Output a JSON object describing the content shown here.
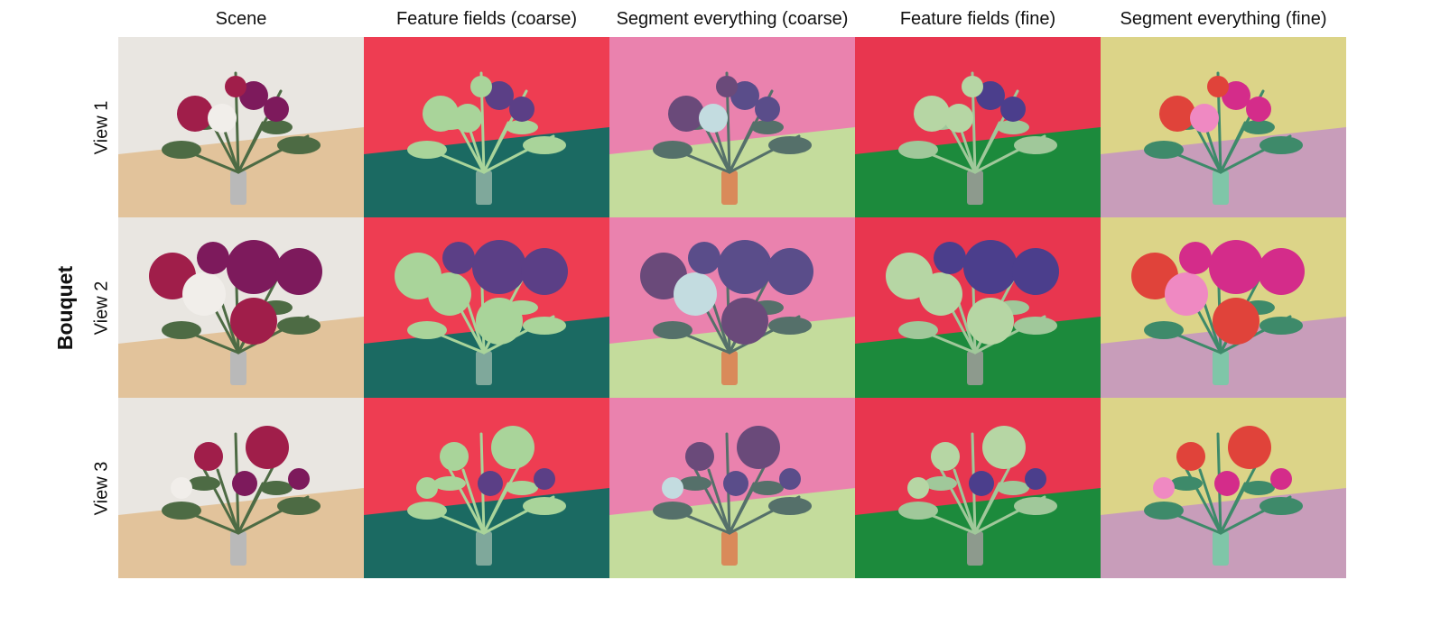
{
  "figure": {
    "group_label": "Bouquet",
    "columns": [
      "Scene",
      "Feature fields (coarse)",
      "Segment everything (coarse)",
      "Feature fields (fine)",
      "Segment everything (fine)"
    ],
    "rows": [
      "View 1",
      "View 2",
      "View 3"
    ]
  },
  "palettes": {
    "scene": {
      "wall": "#e9e6e1",
      "table": "#e2c39b",
      "vase": "#b9b9b9",
      "bloom_a": "#a01e4a",
      "bloom_b": "#7d1a5c",
      "bloom_c": "#f1eeea",
      "leaf": "#4d6b44"
    },
    "ff_coarse": {
      "wall": "#ee3d52",
      "table": "#1b6a62",
      "vase": "#7fa89b",
      "bloom_a": "#a9d49a",
      "bloom_b": "#5b3f86",
      "bloom_c": "#a9d49a",
      "leaf": "#a9d49a"
    },
    "seg_coarse": {
      "wall": "#ea82ae",
      "table": "#c4dc9c",
      "vase": "#d98a5a",
      "bloom_a": "#6a4a7a",
      "bloom_b": "#5a4d8a",
      "bloom_c": "#c3dce0",
      "leaf": "#55706a"
    },
    "ff_fine": {
      "wall": "#e8364f",
      "table": "#1c8a3c",
      "vase": "#8d9a8d",
      "bloom_a": "#b6d6a4",
      "bloom_b": "#4b3e8c",
      "bloom_c": "#b6d6a4",
      "leaf": "#a0c89a"
    },
    "seg_fine": {
      "wall": "#dcd488",
      "table": "#c89dba",
      "vase": "#7fc6a8",
      "bloom_a": "#e0433a",
      "bloom_b": "#d42c8a",
      "bloom_c": "#ef89c2",
      "leaf": "#3e8a6a"
    }
  }
}
